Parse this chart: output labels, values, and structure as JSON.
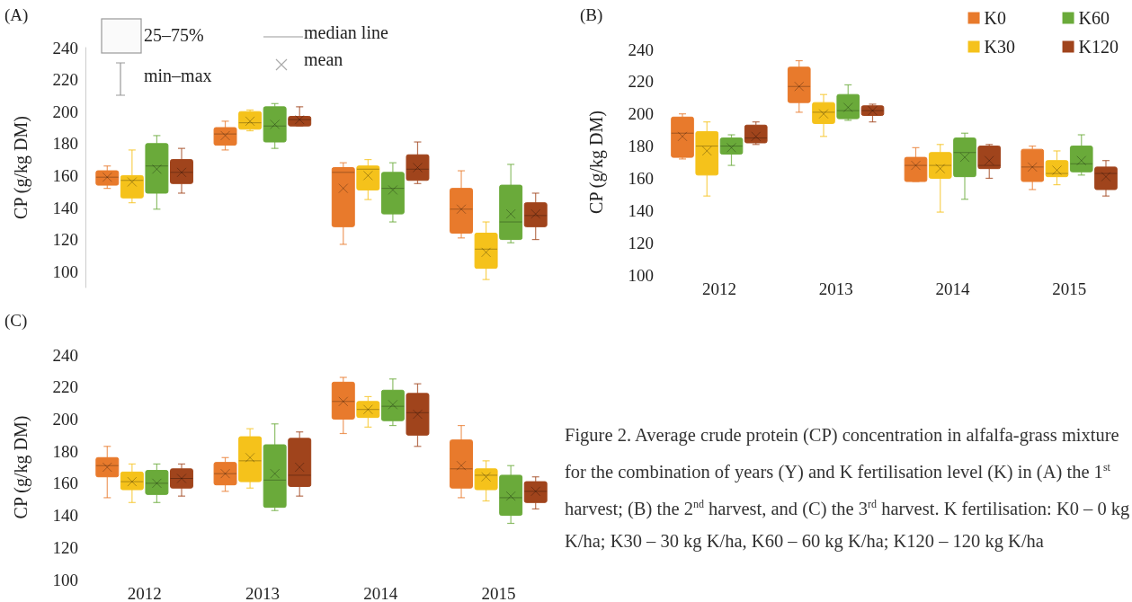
{
  "chart_data": [
    {
      "type": "box",
      "title": "(A)",
      "ylabel": "CP (g/kg DM)",
      "categories": [
        "2012",
        "2013",
        "2014",
        "2015"
      ],
      "ylim": [
        90,
        240
      ],
      "yticks": [
        100,
        120,
        140,
        160,
        180,
        200,
        220,
        240
      ],
      "grid": false,
      "legend": false,
      "tick_labels": "y",
      "annotations": [
        "25–75%",
        "min–max",
        "median line",
        "mean"
      ],
      "series": [
        {
          "color": "#e87a2c",
          "boxes": [
            {
              "low": 152,
              "q1": 154,
              "median": 159,
              "q3": 163,
              "high": 166,
              "mean": 159
            },
            {
              "low": 176,
              "q1": 179,
              "median": 186,
              "q3": 190,
              "high": 194,
              "mean": 185
            },
            {
              "low": 117,
              "q1": 128,
              "median": 162,
              "q3": 165,
              "high": 168,
              "mean": 152
            },
            {
              "low": 121,
              "q1": 124,
              "median": 139,
              "q3": 152,
              "high": 163,
              "mean": 139
            }
          ]
        },
        {
          "color": "#f5c21b",
          "boxes": [
            {
              "low": 143,
              "q1": 146,
              "median": 157,
              "q3": 160,
              "high": 176,
              "mean": 156
            },
            {
              "low": 188,
              "q1": 189,
              "median": 193,
              "q3": 200,
              "high": 201,
              "mean": 194
            },
            {
              "low": 145,
              "q1": 151,
              "median": 164,
              "q3": 166,
              "high": 170,
              "mean": 160
            },
            {
              "low": 95,
              "q1": 102,
              "median": 114,
              "q3": 124,
              "high": 131,
              "mean": 112
            }
          ]
        },
        {
          "color": "#6aaa3a",
          "boxes": [
            {
              "low": 139,
              "q1": 149,
              "median": 166,
              "q3": 180,
              "high": 185,
              "mean": 164
            },
            {
              "low": 177,
              "q1": 181,
              "median": 191,
              "q3": 203,
              "high": 205,
              "mean": 192
            },
            {
              "low": 131,
              "q1": 136,
              "median": 152,
              "q3": 162,
              "high": 168,
              "mean": 151
            },
            {
              "low": 118,
              "q1": 120,
              "median": 131,
              "q3": 154,
              "high": 167,
              "mean": 136
            }
          ]
        },
        {
          "color": "#a0441c",
          "boxes": [
            {
              "low": 149,
              "q1": 155,
              "median": 162,
              "q3": 170,
              "high": 177,
              "mean": 162
            },
            {
              "low": 191,
              "q1": 191,
              "median": 195,
              "q3": 197,
              "high": 203,
              "mean": 195
            },
            {
              "low": 155,
              "q1": 157,
              "median": 164,
              "q3": 173,
              "high": 181,
              "mean": 165
            },
            {
              "low": 120,
              "q1": 128,
              "median": 135,
              "q3": 143,
              "high": 149,
              "mean": 136
            }
          ]
        }
      ]
    },
    {
      "type": "box",
      "title": "(B)",
      "ylabel": "CP (g/kg DM)",
      "categories": [
        "2012",
        "2013",
        "2014",
        "2015"
      ],
      "ylim": [
        100,
        240
      ],
      "yticks": [
        100,
        120,
        140,
        160,
        180,
        200,
        220,
        240
      ],
      "grid": false,
      "legend": "top right",
      "series": [
        {
          "name": "K0",
          "color": "#e87a2c",
          "boxes": [
            {
              "low": 172,
              "q1": 173,
              "median": 188,
              "q3": 198,
              "high": 200,
              "mean": 186
            },
            {
              "low": 201,
              "q1": 207,
              "median": 217,
              "q3": 229,
              "high": 233,
              "mean": 217
            },
            {
              "low": 158,
              "q1": 158,
              "median": 168,
              "q3": 173,
              "high": 179,
              "mean": 168
            },
            {
              "low": 153,
              "q1": 158,
              "median": 167,
              "q3": 178,
              "high": 180,
              "mean": 167
            }
          ]
        },
        {
          "name": "K30",
          "color": "#f5c21b",
          "boxes": [
            {
              "low": 149,
              "q1": 162,
              "median": 180,
              "q3": 189,
              "high": 195,
              "mean": 177
            },
            {
              "low": 186,
              "q1": 194,
              "median": 201,
              "q3": 207,
              "high": 212,
              "mean": 200
            },
            {
              "low": 139,
              "q1": 160,
              "median": 168,
              "q3": 176,
              "high": 181,
              "mean": 166
            },
            {
              "low": 156,
              "q1": 161,
              "median": 163,
              "q3": 171,
              "high": 177,
              "mean": 165
            }
          ]
        },
        {
          "name": "K60",
          "color": "#6aaa3a",
          "boxes": [
            {
              "low": 168,
              "q1": 175,
              "median": 180,
              "q3": 185,
              "high": 187,
              "mean": 179
            },
            {
              "low": 196,
              "q1": 197,
              "median": 202,
              "q3": 212,
              "high": 218,
              "mean": 204
            },
            {
              "low": 147,
              "q1": 161,
              "median": 176,
              "q3": 185,
              "high": 188,
              "mean": 173
            },
            {
              "low": 162,
              "q1": 164,
              "median": 169,
              "q3": 180,
              "high": 187,
              "mean": 171
            }
          ]
        },
        {
          "name": "K120",
          "color": "#a0441c",
          "boxes": [
            {
              "low": 181,
              "q1": 182,
              "median": 185,
              "q3": 193,
              "high": 195,
              "mean": 186
            },
            {
              "low": 195,
              "q1": 199,
              "median": 202,
              "q3": 205,
              "high": 206,
              "mean": 202
            },
            {
              "low": 160,
              "q1": 166,
              "median": 168,
              "q3": 180,
              "high": 181,
              "mean": 171
            },
            {
              "low": 149,
              "q1": 153,
              "median": 163,
              "q3": 167,
              "high": 171,
              "mean": 161
            }
          ]
        }
      ]
    },
    {
      "type": "box",
      "title": "(C)",
      "ylabel": "CP (g/kg DM)",
      "categories": [
        "2012",
        "2013",
        "2014",
        "2015"
      ],
      "ylim": [
        100,
        240
      ],
      "yticks": [
        100,
        120,
        140,
        160,
        180,
        200,
        220,
        240
      ],
      "grid": false,
      "legend": false,
      "annotations": [
        "Figure 2. Average crude protein (CP) concentration in alfalfa-grass mixture for the combination of years (Y) and K fertilisation level (K) in (A) the 1$^{st}$ harvest; (B) the 2$^{nd}$ harvest, and (C) the 3$^{rd}$ harvest. K fertilisation: K0 – 0 kg K/ha; K30 – 30 kg K/ha, K60 – 60 kg K/ha; K120 – 120 kg K/ha"
      ],
      "series": [
        {
          "color": "#e87a2c",
          "boxes": [
            {
              "low": 151,
              "q1": 164,
              "median": 171,
              "q3": 176,
              "high": 183,
              "mean": 170
            },
            {
              "low": 155,
              "q1": 159,
              "median": 166,
              "q3": 173,
              "high": 176,
              "mean": 166
            },
            {
              "low": 191,
              "q1": 200,
              "median": 211,
              "q3": 223,
              "high": 226,
              "mean": 211
            },
            {
              "low": 151,
              "q1": 157,
              "median": 169,
              "q3": 187,
              "high": 196,
              "mean": 171
            }
          ]
        },
        {
          "color": "#f5c21b",
          "boxes": [
            {
              "low": 148,
              "q1": 156,
              "median": 161,
              "q3": 167,
              "high": 172,
              "mean": 161
            },
            {
              "low": 157,
              "q1": 161,
              "median": 174,
              "q3": 189,
              "high": 194,
              "mean": 176
            },
            {
              "low": 195,
              "q1": 201,
              "median": 206,
              "q3": 211,
              "high": 214,
              "mean": 206
            },
            {
              "low": 149,
              "q1": 156,
              "median": 165,
              "q3": 169,
              "high": 174,
              "mean": 164
            }
          ]
        },
        {
          "color": "#6aaa3a",
          "boxes": [
            {
              "low": 148,
              "q1": 153,
              "median": 160,
              "q3": 168,
              "high": 172,
              "mean": 160
            },
            {
              "low": 143,
              "q1": 145,
              "median": 162,
              "q3": 184,
              "high": 197,
              "mean": 166
            },
            {
              "low": 196,
              "q1": 199,
              "median": 208,
              "q3": 218,
              "high": 225,
              "mean": 209
            },
            {
              "low": 135,
              "q1": 140,
              "median": 151,
              "q3": 165,
              "high": 171,
              "mean": 152
            }
          ]
        },
        {
          "color": "#a0441c",
          "boxes": [
            {
              "low": 152,
              "q1": 157,
              "median": 163,
              "q3": 169,
              "high": 172,
              "mean": 163
            },
            {
              "low": 152,
              "q1": 158,
              "median": 165,
              "q3": 188,
              "high": 192,
              "mean": 170
            },
            {
              "low": 183,
              "q1": 190,
              "median": 204,
              "q3": 216,
              "high": 222,
              "mean": 203
            },
            {
              "low": 144,
              "q1": 148,
              "median": 155,
              "q3": 161,
              "high": 164,
              "mean": 155
            }
          ]
        }
      ]
    }
  ]
}
